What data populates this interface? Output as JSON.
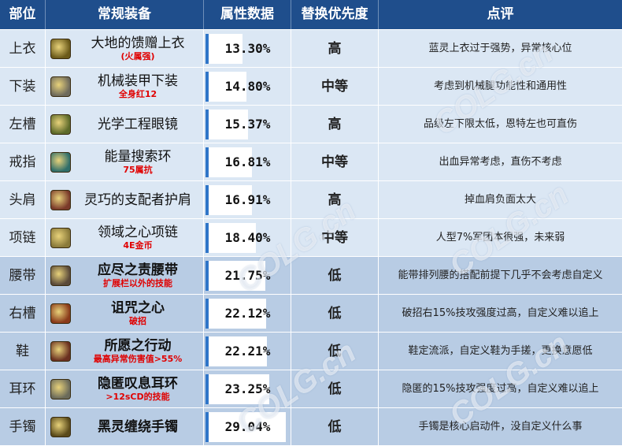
{
  "headers": [
    "部位",
    "常规装备",
    "属性数据",
    "替换优先度",
    "点评"
  ],
  "rows": [
    {
      "slot": "上衣",
      "name": "大地的馈赠上衣",
      "sub": "(火属强)",
      "bold": false,
      "value": "13.30%",
      "value_pct": 13.3,
      "priority": "高",
      "note": "蓝灵上衣过于强势，异常核心位",
      "icon_color": "#6b5a1a"
    },
    {
      "slot": "下装",
      "name": "机械装甲下装",
      "sub": "全身红12",
      "bold": false,
      "value": "14.80%",
      "value_pct": 14.8,
      "priority": "中等",
      "note": "考虑到机械腿功能性和通用性",
      "icon_color": "#6e6a5c"
    },
    {
      "slot": "左槽",
      "name": "光学工程眼镜",
      "sub": "",
      "bold": false,
      "value": "15.37%",
      "value_pct": 15.37,
      "priority": "高",
      "note": "品级左下限太低，恩特左也可直伤",
      "icon_color": "#5d6a2a"
    },
    {
      "slot": "戒指",
      "name": "能量搜索环",
      "sub": "75属抗",
      "bold": false,
      "value": "16.81%",
      "value_pct": 16.81,
      "priority": "中等",
      "note": "出血异常考虑，直伤不考虑",
      "icon_color": "#2f6e6a"
    },
    {
      "slot": "头肩",
      "name": "灵巧的支配者护肩",
      "sub": "",
      "bold": false,
      "value": "16.91%",
      "value_pct": 16.91,
      "priority": "高",
      "note": "掉血肩负面太大",
      "icon_color": "#7a3a2a"
    },
    {
      "slot": "项链",
      "name": "领域之心项链",
      "sub": "4E金币",
      "bold": false,
      "value": "18.40%",
      "value_pct": 18.4,
      "priority": "中等",
      "note": "人型7%军团本很强，未来弱",
      "icon_color": "#8a7a3a"
    },
    {
      "slot": "腰带",
      "name": "应尽之责腰带",
      "sub": "扩展栏以外的技能",
      "bold": true,
      "value": "21.75%",
      "value_pct": 21.75,
      "priority": "低",
      "note": "能带排列腰的搭配前提下几乎不会考虑自定义",
      "icon_color": "#5a4a3a"
    },
    {
      "slot": "右槽",
      "name": "诅咒之心",
      "sub": "破招",
      "bold": true,
      "value": "22.12%",
      "value_pct": 22.12,
      "priority": "低",
      "note": "破招右15%技攻强度过高，自定义难以追上",
      "icon_color": "#8a3a1a"
    },
    {
      "slot": "鞋",
      "name": "所愿之行动",
      "sub": "最高异常伤害值>55%",
      "bold": true,
      "value": "22.21%",
      "value_pct": 22.21,
      "priority": "低",
      "note": "鞋定流派，自定义鞋为手搓，更换意愿低",
      "icon_color": "#6a3020"
    },
    {
      "slot": "耳环",
      "name": "隐匿叹息耳环",
      "sub": ">12sCD的技能",
      "bold": true,
      "value": "23.25%",
      "value_pct": 23.25,
      "priority": "低",
      "note": "隐匿的15%技攻强度过高，自定义难以追上",
      "icon_color": "#6a6a5a"
    },
    {
      "slot": "手镯",
      "name": "黑灵缠绕手镯",
      "sub": "",
      "bold": true,
      "value": "29.04%",
      "value_pct": 29.04,
      "priority": "低",
      "note": "手镯是核心启动件，没自定义什么事",
      "icon_color": "#5a4a1a"
    }
  ],
  "watermark": "COLG.cn"
}
